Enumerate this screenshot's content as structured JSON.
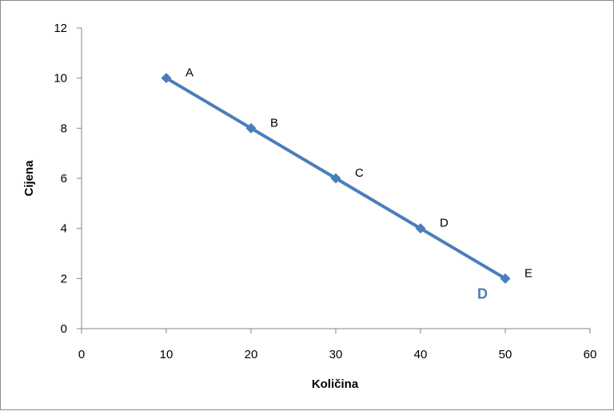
{
  "chart_data": {
    "type": "line",
    "title": "",
    "xlabel": "Količina",
    "ylabel": "Cijena",
    "xlim": [
      0,
      60
    ],
    "ylim": [
      0,
      12
    ],
    "xticks": [
      0,
      10,
      20,
      30,
      40,
      50,
      60
    ],
    "yticks": [
      0,
      2,
      4,
      6,
      8,
      10,
      12
    ],
    "grid": false,
    "legend": "none",
    "series": [
      {
        "name": "D",
        "color": "#4a7ebb",
        "points": [
          {
            "label": "A",
            "x": 10,
            "y": 10
          },
          {
            "label": "B",
            "x": 20,
            "y": 8
          },
          {
            "label": "C",
            "x": 30,
            "y": 6
          },
          {
            "label": "D",
            "x": 40,
            "y": 4
          },
          {
            "label": "E",
            "x": 50,
            "y": 2
          }
        ]
      }
    ]
  }
}
